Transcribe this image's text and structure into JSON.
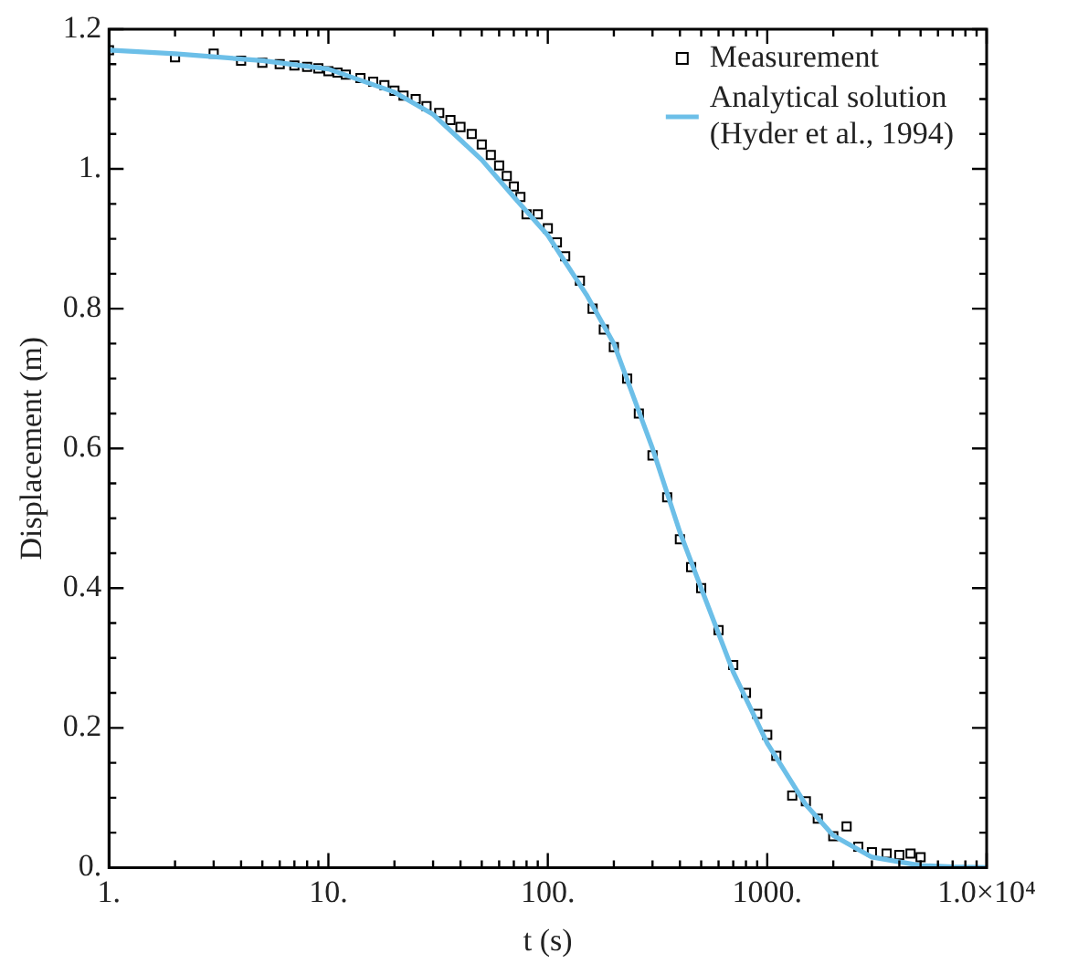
{
  "chart_data": {
    "type": "scatter",
    "xlabel": "t (s)",
    "ylabel": "Displacement (m)",
    "log": "x",
    "legend": "top right",
    "grid": false,
    "xlim": [
      1,
      10000
    ],
    "ylim": [
      0,
      1.2
    ],
    "xticks": [
      {
        "value": 1,
        "label": "1."
      },
      {
        "value": 2,
        "label": null
      },
      {
        "value": 3,
        "label": null
      },
      {
        "value": 4,
        "label": null
      },
      {
        "value": 5,
        "label": null
      },
      {
        "value": 6,
        "label": null
      },
      {
        "value": 7,
        "label": null
      },
      {
        "value": 8,
        "label": null
      },
      {
        "value": 9,
        "label": null
      },
      {
        "value": 10,
        "label": "10."
      },
      {
        "value": 20,
        "label": null
      },
      {
        "value": 30,
        "label": null
      },
      {
        "value": 40,
        "label": null
      },
      {
        "value": 50,
        "label": null
      },
      {
        "value": 60,
        "label": null
      },
      {
        "value": 70,
        "label": null
      },
      {
        "value": 80,
        "label": null
      },
      {
        "value": 90,
        "label": null
      },
      {
        "value": 100,
        "label": "100."
      },
      {
        "value": 200,
        "label": null
      },
      {
        "value": 300,
        "label": null
      },
      {
        "value": 400,
        "label": null
      },
      {
        "value": 500,
        "label": null
      },
      {
        "value": 600,
        "label": null
      },
      {
        "value": 700,
        "label": null
      },
      {
        "value": 800,
        "label": null
      },
      {
        "value": 900,
        "label": null
      },
      {
        "value": 1000,
        "label": "1000."
      },
      {
        "value": 2000,
        "label": null
      },
      {
        "value": 3000,
        "label": null
      },
      {
        "value": 4000,
        "label": null
      },
      {
        "value": 5000,
        "label": null
      },
      {
        "value": 6000,
        "label": null
      },
      {
        "value": 7000,
        "label": null
      },
      {
        "value": 8000,
        "label": null
      },
      {
        "value": 9000,
        "label": null
      },
      {
        "value": 10000,
        "label": "1.0×10⁴"
      }
    ],
    "yticks": [
      {
        "value": 0,
        "label": "0."
      },
      {
        "value": 0.05,
        "label": null
      },
      {
        "value": 0.1,
        "label": null
      },
      {
        "value": 0.15,
        "label": null
      },
      {
        "value": 0.2,
        "label": "0.2"
      },
      {
        "value": 0.25,
        "label": null
      },
      {
        "value": 0.3,
        "label": null
      },
      {
        "value": 0.35,
        "label": null
      },
      {
        "value": 0.4,
        "label": "0.4"
      },
      {
        "value": 0.45,
        "label": null
      },
      {
        "value": 0.5,
        "label": null
      },
      {
        "value": 0.55,
        "label": null
      },
      {
        "value": 0.6,
        "label": "0.6"
      },
      {
        "value": 0.65,
        "label": null
      },
      {
        "value": 0.7,
        "label": null
      },
      {
        "value": 0.75,
        "label": null
      },
      {
        "value": 0.8,
        "label": "0.8"
      },
      {
        "value": 0.85,
        "label": null
      },
      {
        "value": 0.9,
        "label": null
      },
      {
        "value": 0.95,
        "label": null
      },
      {
        "value": 1,
        "label": "1."
      },
      {
        "value": 1.05,
        "label": null
      },
      {
        "value": 1.1,
        "label": null
      },
      {
        "value": 1.15,
        "label": null
      },
      {
        "value": 1.2,
        "label": "1.2"
      }
    ],
    "series": [
      {
        "name": "Measurement",
        "marker": "square",
        "color": "#000000",
        "x": [
          1,
          2,
          3,
          4,
          5,
          6,
          7,
          8,
          9,
          10,
          11,
          12,
          14,
          16,
          18,
          20,
          22,
          25,
          28,
          32,
          36,
          40,
          45,
          50,
          55,
          60,
          65,
          70,
          75,
          80,
          90,
          100,
          110,
          120,
          140,
          160,
          180,
          200,
          230,
          260,
          300,
          350,
          400,
          450,
          500,
          600,
          700,
          800,
          900,
          1000,
          1100,
          1300,
          1500,
          1700,
          2000,
          2300,
          2600,
          3000,
          3500,
          4000,
          4500,
          5000
        ],
        "values": [
          1.17,
          1.16,
          1.165,
          1.155,
          1.152,
          1.15,
          1.148,
          1.146,
          1.144,
          1.14,
          1.138,
          1.135,
          1.13,
          1.125,
          1.12,
          1.112,
          1.105,
          1.1,
          1.09,
          1.08,
          1.07,
          1.06,
          1.05,
          1.035,
          1.02,
          1.005,
          0.99,
          0.975,
          0.96,
          0.935,
          0.935,
          0.915,
          0.895,
          0.875,
          0.84,
          0.8,
          0.77,
          0.745,
          0.7,
          0.65,
          0.59,
          0.53,
          0.47,
          0.43,
          0.4,
          0.34,
          0.29,
          0.25,
          0.22,
          0.19,
          0.16,
          0.103,
          0.095,
          0.07,
          0.045,
          0.059,
          0.03,
          0.022,
          0.02,
          0.018,
          0.02,
          0.015
        ]
      },
      {
        "name": "Analytical solution\n(Hyder et al., 1994)",
        "type": "line",
        "marker": "none",
        "line_style": "solid",
        "color": "#6cbfe8",
        "x": [
          1,
          2,
          5,
          10,
          20,
          30,
          50,
          70,
          100,
          150,
          200,
          300,
          400,
          500,
          700,
          1000,
          1500,
          2000,
          3000,
          5000,
          7000,
          10000
        ],
        "values": [
          1.17,
          1.165,
          1.155,
          1.143,
          1.11,
          1.078,
          1.013,
          0.96,
          0.905,
          0.82,
          0.75,
          0.6,
          0.48,
          0.4,
          0.28,
          0.178,
          0.09,
          0.046,
          0.015,
          0.003,
          0.001,
          0
        ]
      }
    ]
  }
}
